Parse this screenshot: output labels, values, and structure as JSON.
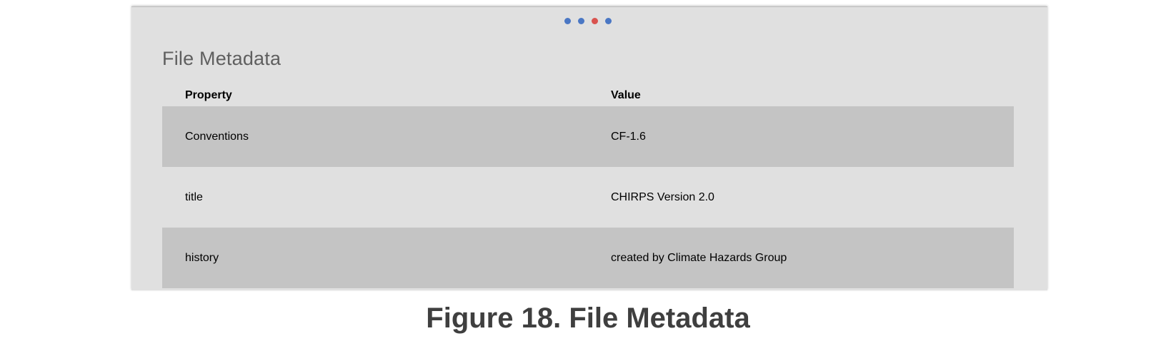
{
  "carousel": {
    "dots": [
      {
        "active": false
      },
      {
        "active": false
      },
      {
        "active": true
      },
      {
        "active": false
      }
    ],
    "colors": {
      "dot": "#4a77c4",
      "dot_active": "#d9534f"
    }
  },
  "section": {
    "title": "File Metadata"
  },
  "table": {
    "headers": {
      "property": "Property",
      "value": "Value"
    },
    "rows": [
      {
        "property": "Conventions",
        "value": "CF-1.6"
      },
      {
        "property": "title",
        "value": "CHIRPS Version 2.0"
      },
      {
        "property": "history",
        "value": "created by Climate Hazards Group"
      }
    ]
  },
  "caption": "Figure 18. File Metadata"
}
